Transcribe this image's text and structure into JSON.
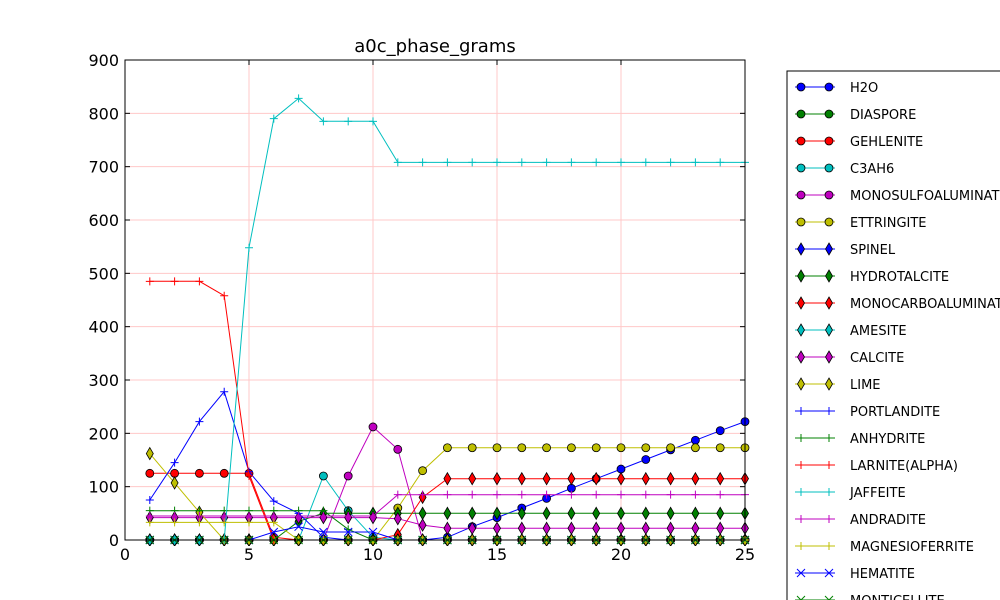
{
  "chart_data": {
    "type": "line",
    "title": "a0c_phase_grams",
    "xlabel": "",
    "ylabel": "",
    "xlim": [
      0,
      25
    ],
    "ylim": [
      0,
      900
    ],
    "xticks": [
      "0",
      "5",
      "10",
      "15",
      "20",
      "25"
    ],
    "yticks": [
      "0",
      "100",
      "200",
      "300",
      "400",
      "500",
      "600",
      "700",
      "800",
      "900"
    ],
    "grid": true,
    "grid_color": "#ffc8c8",
    "legend_position": "right",
    "x": [
      1,
      2,
      3,
      4,
      5,
      6,
      7,
      8,
      9,
      10,
      11,
      12,
      13,
      14,
      15,
      16,
      17,
      18,
      19,
      20,
      21,
      22,
      23,
      24,
      25
    ],
    "series": [
      {
        "name": "H2O",
        "color": "#0000ff",
        "marker": "circle",
        "values": [
          0,
          0,
          0,
          0,
          0,
          0,
          0,
          0,
          0,
          0,
          0,
          0,
          5,
          25,
          42,
          60,
          78,
          97,
          115,
          133,
          151,
          169,
          187,
          205,
          222
        ]
      },
      {
        "name": "DIASPORE",
        "color": "#008000",
        "marker": "circle",
        "values": [
          0,
          0,
          0,
          0,
          0,
          0,
          0,
          0,
          0,
          0,
          0,
          0,
          0,
          0,
          0,
          0,
          0,
          0,
          0,
          0,
          0,
          0,
          0,
          0,
          0
        ]
      },
      {
        "name": "GEHLENITE",
        "color": "#ff0000",
        "marker": "circle",
        "values": [
          125,
          125,
          125,
          125,
          125,
          5,
          0,
          0,
          0,
          0,
          0,
          0,
          0,
          0,
          0,
          0,
          0,
          0,
          0,
          0,
          0,
          0,
          0,
          0,
          0
        ]
      },
      {
        "name": "C3AH6",
        "color": "#00bfbf",
        "marker": "circle",
        "values": [
          0,
          0,
          0,
          0,
          0,
          0,
          0,
          120,
          55,
          5,
          0,
          0,
          0,
          0,
          0,
          0,
          0,
          0,
          0,
          0,
          0,
          0,
          0,
          0,
          0
        ]
      },
      {
        "name": "MONOSULFOALUMINATE",
        "color": "#bf00bf",
        "marker": "circle",
        "values": [
          0,
          0,
          0,
          0,
          0,
          0,
          0,
          0,
          120,
          212,
          170,
          0,
          0,
          0,
          0,
          0,
          0,
          0,
          0,
          0,
          0,
          0,
          0,
          0,
          0
        ]
      },
      {
        "name": "ETTRINGITE",
        "color": "#bfbf00",
        "marker": "circle",
        "values": [
          0,
          0,
          0,
          0,
          0,
          0,
          0,
          0,
          0,
          0,
          60,
          130,
          173,
          173,
          173,
          173,
          173,
          173,
          173,
          173,
          173,
          173,
          173,
          173,
          173
        ]
      },
      {
        "name": "SPINEL",
        "color": "#0000ff",
        "marker": "diamond",
        "values": [
          0,
          0,
          0,
          0,
          0,
          0,
          0,
          0,
          0,
          0,
          0,
          0,
          0,
          0,
          0,
          0,
          0,
          0,
          0,
          0,
          0,
          0,
          0,
          0,
          0
        ]
      },
      {
        "name": "HYDROTALCITE",
        "color": "#008000",
        "marker": "diamond",
        "values": [
          0,
          0,
          0,
          0,
          0,
          0,
          35,
          50,
          50,
          50,
          50,
          50,
          50,
          50,
          50,
          50,
          50,
          50,
          50,
          50,
          50,
          50,
          50,
          50,
          50
        ]
      },
      {
        "name": "MONOCARBOALUMINATE",
        "color": "#ff0000",
        "marker": "diamond",
        "values": [
          0,
          0,
          0,
          0,
          0,
          0,
          0,
          0,
          0,
          0,
          10,
          80,
          115,
          115,
          115,
          115,
          115,
          115,
          115,
          115,
          115,
          115,
          115,
          115,
          115
        ]
      },
      {
        "name": "AMESITE",
        "color": "#00bfbf",
        "marker": "diamond",
        "values": [
          0,
          0,
          0,
          0,
          0,
          0,
          0,
          0,
          0,
          0,
          0,
          0,
          0,
          0,
          0,
          0,
          0,
          0,
          0,
          0,
          0,
          0,
          0,
          0,
          0
        ]
      },
      {
        "name": "CALCITE",
        "color": "#bf00bf",
        "marker": "diamond",
        "values": [
          42,
          42,
          42,
          42,
          42,
          42,
          42,
          42,
          42,
          42,
          40,
          28,
          22,
          22,
          22,
          22,
          22,
          22,
          22,
          22,
          22,
          22,
          22,
          22,
          22
        ]
      },
      {
        "name": "LIME",
        "color": "#bfbf00",
        "marker": "diamond",
        "values": [
          162,
          107,
          52,
          0,
          0,
          0,
          0,
          0,
          0,
          0,
          0,
          0,
          0,
          0,
          0,
          0,
          0,
          0,
          0,
          0,
          0,
          0,
          0,
          0,
          0
        ]
      },
      {
        "name": "PORTLANDITE",
        "color": "#0000ff",
        "marker": "plus",
        "values": [
          75,
          145,
          222,
          278,
          128,
          73,
          50,
          5,
          0,
          0,
          0,
          0,
          0,
          0,
          0,
          0,
          0,
          0,
          0,
          0,
          0,
          0,
          0,
          0,
          0
        ]
      },
      {
        "name": "ANHYDRITE",
        "color": "#008000",
        "marker": "plus",
        "values": [
          55,
          55,
          55,
          55,
          55,
          55,
          55,
          55,
          20,
          0,
          0,
          0,
          0,
          0,
          0,
          0,
          0,
          0,
          0,
          0,
          0,
          0,
          0,
          0,
          0
        ]
      },
      {
        "name": "LARNITE(ALPHA)",
        "color": "#ff0000",
        "marker": "plus",
        "values": [
          485,
          485,
          485,
          458,
          120,
          0,
          0,
          0,
          0,
          0,
          0,
          0,
          0,
          0,
          0,
          0,
          0,
          0,
          0,
          0,
          0,
          0,
          0,
          0,
          0
        ]
      },
      {
        "name": "JAFFEITE",
        "color": "#00bfbf",
        "marker": "plus",
        "values": [
          0,
          0,
          0,
          0,
          548,
          790,
          828,
          785,
          785,
          785,
          708,
          708,
          708,
          708,
          708,
          708,
          708,
          708,
          708,
          708,
          708,
          708,
          708,
          708,
          708
        ]
      },
      {
        "name": "ANDRADITE",
        "color": "#bf00bf",
        "marker": "plus",
        "values": [
          45,
          45,
          45,
          45,
          45,
          45,
          45,
          45,
          45,
          45,
          85,
          85,
          85,
          85,
          85,
          85,
          85,
          85,
          85,
          85,
          85,
          85,
          85,
          85,
          85
        ]
      },
      {
        "name": "MAGNESIOFERRITE",
        "color": "#bfbf00",
        "marker": "plus",
        "values": [
          33,
          33,
          33,
          33,
          33,
          33,
          0,
          0,
          0,
          0,
          0,
          0,
          0,
          0,
          0,
          0,
          0,
          0,
          0,
          0,
          0,
          0,
          0,
          0,
          0
        ]
      },
      {
        "name": "HEMATITE",
        "color": "#0000ff",
        "marker": "x",
        "values": [
          0,
          0,
          0,
          0,
          0,
          15,
          25,
          15,
          15,
          15,
          0,
          0,
          0,
          0,
          0,
          0,
          0,
          0,
          0,
          0,
          0,
          0,
          0,
          0,
          0
        ]
      },
      {
        "name": "MONTICELLITE",
        "color": "#008000",
        "marker": "x",
        "values": [
          0,
          0,
          0,
          0,
          0,
          0,
          0,
          0,
          0,
          0,
          0,
          0,
          0,
          0,
          0,
          0,
          0,
          0,
          0,
          0,
          0,
          0,
          0,
          0,
          0
        ]
      }
    ]
  }
}
